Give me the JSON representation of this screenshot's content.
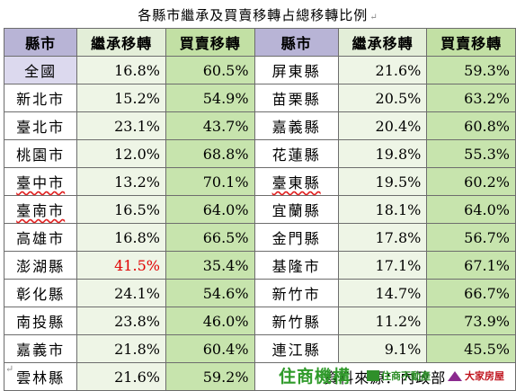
{
  "title": "各縣市繼承及買賣移轉占總移轉比例",
  "para_mark": "↵",
  "headers": {
    "county": "縣市",
    "inheritance": "繼承移轉",
    "trade": "買賣移轉"
  },
  "left": [
    {
      "name": "全國",
      "inh": "16.8%",
      "buy": "60.5%"
    },
    {
      "name": "新北市",
      "inh": "15.2%",
      "buy": "54.9%"
    },
    {
      "name": "臺北市",
      "inh": "23.1%",
      "buy": "43.7%"
    },
    {
      "name": "桃園市",
      "inh": "12.0%",
      "buy": "68.8%"
    },
    {
      "name": "臺中市",
      "inh": "13.2%",
      "buy": "70.1%"
    },
    {
      "name": "臺南市",
      "inh": "16.5%",
      "buy": "64.0%"
    },
    {
      "name": "高雄市",
      "inh": "16.8%",
      "buy": "66.5%"
    },
    {
      "name": "澎湖縣",
      "inh": "41.5%",
      "buy": "35.4%"
    },
    {
      "name": "彰化縣",
      "inh": "24.1%",
      "buy": "54.6%"
    },
    {
      "name": "南投縣",
      "inh": "23.8%",
      "buy": "46.0%"
    },
    {
      "name": "嘉義市",
      "inh": "21.8%",
      "buy": "60.4%"
    },
    {
      "name": "雲林縣",
      "inh": "21.6%",
      "buy": "59.2%"
    }
  ],
  "right": [
    {
      "name": "屏東縣",
      "inh": "21.6%",
      "buy": "59.3%"
    },
    {
      "name": "苗栗縣",
      "inh": "20.5%",
      "buy": "63.2%"
    },
    {
      "name": "嘉義縣",
      "inh": "20.4%",
      "buy": "60.8%"
    },
    {
      "name": "花蓮縣",
      "inh": "19.8%",
      "buy": "55.3%"
    },
    {
      "name": "臺東縣",
      "inh": "19.5%",
      "buy": "60.2%"
    },
    {
      "name": "宜蘭縣",
      "inh": "18.1%",
      "buy": "64.0%"
    },
    {
      "name": "金門縣",
      "inh": "17.8%",
      "buy": "56.7%"
    },
    {
      "name": "基隆市",
      "inh": "17.1%",
      "buy": "67.1%"
    },
    {
      "name": "新竹市",
      "inh": "14.7%",
      "buy": "66.7%"
    },
    {
      "name": "新竹縣",
      "inh": "11.2%",
      "buy": "73.9%"
    },
    {
      "name": "連江縣",
      "inh": "9.1%",
      "buy": "45.5%"
    }
  ],
  "source": "資料來源：內政部",
  "logos": {
    "brand1": "住商機構",
    "brand2": "住商不動產",
    "brand3": "大家房屋"
  },
  "colors": {
    "highlight_red": "#e10000",
    "brand_green": "#2f9a2a",
    "brand_red": "#c0141e"
  }
}
